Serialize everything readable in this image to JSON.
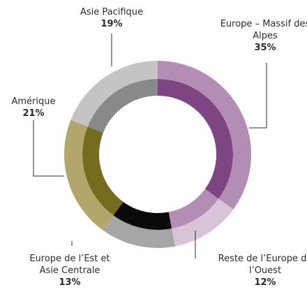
{
  "chart_data": {
    "type": "pie",
    "categories": [
      "Europe – Massif des Alpes",
      "Reste de l’Europe de l’Ouest",
      "Europe de l’Est et Asie Centrale",
      "Amérique",
      "Asie Pacifique"
    ],
    "values": [
      35,
      12,
      13,
      21,
      19
    ],
    "value_labels": [
      "35%",
      "12%",
      "13%",
      "21%",
      "19%"
    ],
    "colors": [
      "#b48db5",
      "#d9c3d8",
      "#a6a6a6",
      "#b3a66a",
      "#c4c4c4"
    ],
    "inner_colors": [
      "#7d4683",
      "#b48db5",
      "#0a0a0a",
      "#756c1e",
      "#898989"
    ]
  }
}
